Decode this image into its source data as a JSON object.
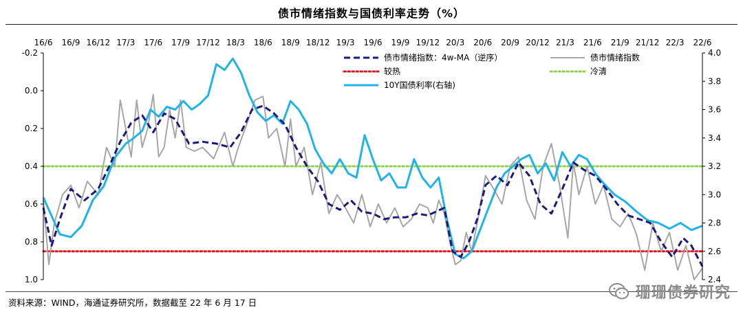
{
  "title": "债市情绪指数与国债利率走势（%）",
  "source": "资料来源：WIND，海通证券研究所，数据截至 22 年 6 月 17 日",
  "watermark": "珊珊债券研究",
  "colors": {
    "ma": "#1a1a7a",
    "index": "#a6a6a6",
    "yield": "#1fb3e8",
    "hot": "#e3141e",
    "cold": "#8fd14f"
  },
  "chart_data": {
    "type": "line",
    "title": "债市情绪指数与国债利率走势（%）",
    "x_tick_labels": [
      "16/6",
      "16/9",
      "16/12",
      "17/3",
      "17/6",
      "17/9",
      "17/12",
      "18/3",
      "18/6",
      "18/9",
      "18/12",
      "19/3",
      "19/6",
      "19/9",
      "19/12",
      "20/3",
      "20/6",
      "20/9",
      "20/12",
      "21/3",
      "21/6",
      "21/9",
      "21/12",
      "22/3",
      "22/6"
    ],
    "y_left": {
      "label": "债市情绪指数（逆序）",
      "range": [
        -0.2,
        1.0
      ],
      "inverted": true,
      "ticks": [
        "-0.2",
        "0.0",
        "0.2",
        "0.4",
        "0.6",
        "0.8",
        "1.0"
      ]
    },
    "y_right": {
      "label": "10Y国债利率",
      "range": [
        2.4,
        4.0
      ],
      "ticks": [
        "2.4",
        "2.6",
        "2.8",
        "3.0",
        "3.2",
        "3.4",
        "3.6",
        "3.8",
        "4.0"
      ]
    },
    "reference_lines": [
      {
        "name": "较热",
        "value": 0.85,
        "axis": "left"
      },
      {
        "name": "冷清",
        "value": 0.4,
        "axis": "left"
      }
    ],
    "legend": [
      {
        "label": "债市情绪指数：4w-MA（逆序）",
        "key": "ma"
      },
      {
        "label": "债市情绪指数",
        "key": "index"
      },
      {
        "label": "较热",
        "key": "hot"
      },
      {
        "label": "冷清",
        "key": "cold"
      },
      {
        "label": "10Y国债利率(右轴)",
        "key": "yield"
      }
    ],
    "series": [
      {
        "name": "债市情绪指数：4w-MA（逆序）",
        "axis": "left",
        "x": [
          0,
          0.3,
          0.6,
          1,
          1.5,
          2,
          2.4,
          2.8,
          3.2,
          3.6,
          4,
          4.4,
          4.8,
          5.3,
          5.8,
          6.3,
          6.8,
          7.2,
          7.6,
          8,
          8.4,
          8.8,
          9.2,
          9.6,
          10,
          10.4,
          10.8,
          11.2,
          11.6,
          12,
          12.4,
          12.8,
          13.2,
          13.6,
          14,
          14.3,
          14.6,
          14.9,
          15.2,
          15.5,
          15.8,
          16.1,
          16.5,
          16.9,
          17.3,
          17.7,
          18.1,
          18.5,
          18.9,
          19.3,
          19.7,
          20.1,
          20.5,
          20.9,
          21.3,
          21.7,
          22.1,
          22.5,
          22.9,
          23.3,
          23.6,
          24
        ],
        "values": [
          0.62,
          0.82,
          0.68,
          0.52,
          0.58,
          0.52,
          0.4,
          0.27,
          0.17,
          0.13,
          0.22,
          0.12,
          0.15,
          0.28,
          0.27,
          0.28,
          0.3,
          0.22,
          0.1,
          0.08,
          0.12,
          0.18,
          0.3,
          0.4,
          0.48,
          0.6,
          0.63,
          0.58,
          0.64,
          0.65,
          0.68,
          0.67,
          0.67,
          0.65,
          0.66,
          0.64,
          0.62,
          0.85,
          0.88,
          0.8,
          0.68,
          0.5,
          0.45,
          0.5,
          0.38,
          0.45,
          0.6,
          0.65,
          0.52,
          0.38,
          0.42,
          0.45,
          0.52,
          0.6,
          0.66,
          0.68,
          0.7,
          0.8,
          0.88,
          0.78,
          0.82,
          0.93
        ]
      },
      {
        "name": "债市情绪指数",
        "axis": "left",
        "x": [
          0,
          0.2,
          0.4,
          0.7,
          1,
          1.3,
          1.6,
          2,
          2.3,
          2.6,
          2.8,
          3,
          3.2,
          3.4,
          3.6,
          3.8,
          4,
          4.2,
          4.4,
          4.6,
          4.8,
          5,
          5.2,
          5.5,
          5.8,
          6.2,
          6.6,
          6.9,
          7.1,
          7.4,
          7.7,
          8,
          8.2,
          8.5,
          8.8,
          9,
          9.2,
          9.5,
          9.8,
          10.1,
          10.4,
          10.7,
          11,
          11.3,
          11.6,
          11.9,
          12.2,
          12.5,
          12.8,
          13.1,
          13.4,
          13.7,
          14,
          14.2,
          14.4,
          14.6,
          14.8,
          15,
          15.2,
          15.4,
          15.6,
          15.8,
          16.1,
          16.4,
          16.7,
          17,
          17.3,
          17.6,
          17.9,
          18.2,
          18.5,
          18.8,
          19.1,
          19.3,
          19.5,
          19.8,
          20.1,
          20.4,
          20.7,
          21,
          21.3,
          21.6,
          21.9,
          22.2,
          22.5,
          22.8,
          23.1,
          23.4,
          23.7,
          24
        ],
        "values": [
          0.58,
          0.92,
          0.7,
          0.55,
          0.5,
          0.62,
          0.48,
          0.55,
          0.3,
          0.4,
          0.05,
          0.2,
          0.35,
          0.05,
          0.3,
          0.2,
          0.02,
          0.35,
          0.3,
          0.1,
          0.25,
          0.05,
          0.3,
          0.32,
          0.3,
          0.36,
          0.22,
          0.4,
          0.3,
          0.18,
          0.05,
          0.03,
          0.25,
          0.2,
          0.4,
          0.15,
          0.4,
          0.3,
          0.55,
          0.38,
          0.65,
          0.55,
          0.62,
          0.7,
          0.55,
          0.72,
          0.6,
          0.7,
          0.62,
          0.72,
          0.68,
          0.6,
          0.62,
          0.7,
          0.58,
          0.65,
          0.8,
          0.92,
          0.9,
          0.75,
          0.85,
          0.7,
          0.45,
          0.52,
          0.6,
          0.4,
          0.35,
          0.58,
          0.68,
          0.4,
          0.28,
          0.5,
          0.78,
          0.38,
          0.55,
          0.4,
          0.6,
          0.5,
          0.68,
          0.72,
          0.65,
          0.76,
          0.95,
          0.7,
          0.85,
          0.75,
          0.95,
          0.82,
          1.0,
          0.94
        ]
      },
      {
        "name": "10Y国债利率(右轴)",
        "axis": "right",
        "x": [
          0,
          0.3,
          0.6,
          1,
          1.4,
          1.8,
          2.2,
          2.6,
          3,
          3.3,
          3.6,
          3.9,
          4.2,
          4.5,
          4.8,
          5.1,
          5.4,
          5.7,
          6,
          6.3,
          6.6,
          6.9,
          7.2,
          7.5,
          7.8,
          8.1,
          8.4,
          8.7,
          9,
          9.3,
          9.6,
          9.9,
          10.2,
          10.5,
          10.8,
          11.1,
          11.4,
          11.7,
          12,
          12.3,
          12.6,
          12.9,
          13.2,
          13.5,
          13.8,
          14.1,
          14.4,
          14.7,
          15,
          15.3,
          15.6,
          15.9,
          16.2,
          16.5,
          16.8,
          17.1,
          17.4,
          17.7,
          18,
          18.3,
          18.6,
          18.9,
          19.2,
          19.5,
          19.8,
          20.1,
          20.4,
          20.8,
          21.2,
          21.6,
          22,
          22.4,
          22.8,
          23.2,
          23.6,
          24
        ],
        "values": [
          2.98,
          2.85,
          2.72,
          2.7,
          2.78,
          2.96,
          3.06,
          3.26,
          3.36,
          3.4,
          3.45,
          3.6,
          3.55,
          3.62,
          3.6,
          3.66,
          3.6,
          3.64,
          3.7,
          3.92,
          3.88,
          3.96,
          3.86,
          3.7,
          3.58,
          3.52,
          3.56,
          3.5,
          3.66,
          3.6,
          3.5,
          3.32,
          3.22,
          3.15,
          3.25,
          3.15,
          3.12,
          3.42,
          3.25,
          3.1,
          3.15,
          3.05,
          3.05,
          3.25,
          3.12,
          3.05,
          3.12,
          2.82,
          2.58,
          2.55,
          2.6,
          2.75,
          2.9,
          3.05,
          3.15,
          3.2,
          3.25,
          3.28,
          3.15,
          3.22,
          3.1,
          3.3,
          3.2,
          3.28,
          3.25,
          3.15,
          3.08,
          3.0,
          2.95,
          2.88,
          2.82,
          2.8,
          2.76,
          2.8,
          2.75,
          2.78
        ]
      }
    ]
  }
}
